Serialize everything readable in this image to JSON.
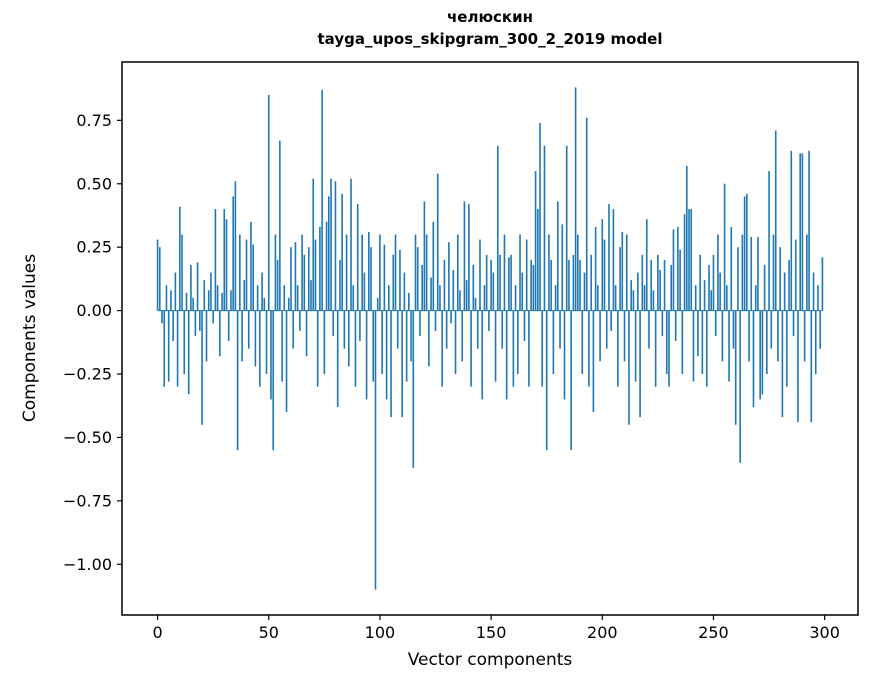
{
  "chart_data": {
    "type": "bar",
    "title": "челюскин",
    "subtitle": "tayga_upos_skipgram_300_2_2019 model",
    "xlabel": "Vector components",
    "ylabel": "Components values",
    "bar_color": "#1f77b4",
    "grid": false,
    "legend": "none",
    "xlim": [
      -16,
      315
    ],
    "ylim": [
      -1.2,
      0.98
    ],
    "x_ticks": {
      "values": [
        0,
        50,
        100,
        150,
        200,
        250,
        300
      ],
      "labels": [
        "0",
        "50",
        "100",
        "150",
        "200",
        "250",
        "300"
      ]
    },
    "y_ticks": {
      "values": [
        -1.0,
        -0.75,
        -0.5,
        -0.25,
        0.0,
        0.25,
        0.5,
        0.75
      ],
      "labels": [
        "−1.00",
        "−0.75",
        "−0.50",
        "−0.25",
        "0.00",
        "0.25",
        "0.50",
        "0.75"
      ]
    },
    "values": [
      0.28,
      0.25,
      -0.05,
      -0.3,
      0.1,
      -0.28,
      0.08,
      -0.12,
      0.15,
      -0.3,
      0.41,
      0.3,
      -0.25,
      0.07,
      -0.33,
      0.18,
      0.05,
      -0.1,
      0.19,
      -0.08,
      -0.45,
      0.12,
      -0.2,
      0.08,
      0.15,
      -0.05,
      0.4,
      0.1,
      -0.18,
      0.07,
      0.4,
      0.36,
      -0.12,
      0.08,
      0.45,
      0.51,
      -0.55,
      0.3,
      -0.2,
      0.12,
      0.28,
      -0.15,
      0.35,
      0.26,
      -0.22,
      0.1,
      -0.3,
      0.15,
      0.05,
      -0.25,
      0.85,
      -0.35,
      -0.55,
      0.3,
      0.2,
      0.67,
      -0.28,
      0.1,
      -0.4,
      0.05,
      0.25,
      -0.15,
      0.27,
      0.1,
      -0.08,
      0.3,
      0.22,
      -0.18,
      0.25,
      0.12,
      0.52,
      0.28,
      -0.3,
      0.33,
      0.87,
      -0.25,
      0.35,
      0.45,
      0.52,
      -0.1,
      0.51,
      -0.38,
      0.2,
      0.46,
      -0.15,
      0.3,
      -0.22,
      0.52,
      0.1,
      -0.3,
      0.42,
      -0.12,
      0.3,
      0.15,
      -0.35,
      0.31,
      0.25,
      -0.28,
      -1.1,
      0.05,
      0.3,
      -0.25,
      0.26,
      -0.35,
      0.1,
      -0.42,
      0.22,
      0.3,
      -0.15,
      0.24,
      -0.42,
      0.15,
      -0.28,
      0.07,
      -0.2,
      -0.62,
      0.3,
      0.25,
      -0.1,
      0.18,
      0.43,
      0.3,
      -0.22,
      0.13,
      0.35,
      -0.08,
      0.54,
      0.1,
      -0.3,
      0.2,
      -0.15,
      0.27,
      -0.05,
      0.16,
      -0.25,
      0.3,
      0.08,
      -0.2,
      0.43,
      0.12,
      0.42,
      -0.3,
      0.18,
      0.05,
      -0.15,
      0.28,
      -0.35,
      0.1,
      0.22,
      -0.08,
      0.2,
      0.15,
      -0.28,
      0.65,
      0.22,
      -0.15,
      0.3,
      -0.35,
      0.21,
      0.22,
      -0.3,
      0.1,
      -0.25,
      0.3,
      0.15,
      -0.12,
      0.28,
      -0.3,
      0.2,
      0.18,
      0.55,
      0.4,
      0.74,
      -0.3,
      0.65,
      -0.55,
      0.3,
      0.2,
      -0.25,
      0.1,
      0.43,
      -0.15,
      0.34,
      -0.35,
      0.65,
      0.2,
      -0.55,
      0.22,
      0.88,
      0.3,
      0.2,
      -0.25,
      0.15,
      0.76,
      -0.3,
      0.22,
      -0.4,
      0.33,
      0.1,
      -0.2,
      0.36,
      0.28,
      -0.15,
      0.42,
      -0.08,
      0.4,
      0.1,
      -0.3,
      0.25,
      0.31,
      -0.2,
      0.3,
      -0.45,
      0.12,
      0.08,
      -0.28,
      0.15,
      -0.42,
      0.22,
      0.1,
      0.36,
      -0.15,
      0.2,
      0.08,
      -0.3,
      0.22,
      0.16,
      -0.1,
      0.2,
      -0.25,
      -0.3,
      0.18,
      0.32,
      -0.12,
      0.33,
      0.24,
      -0.25,
      0.38,
      0.57,
      0.4,
      0.4,
      -0.28,
      0.1,
      -0.18,
      0.22,
      -0.25,
      0.12,
      -0.3,
      0.18,
      0.08,
      0.22,
      -0.1,
      0.3,
      0.15,
      -0.2,
      0.5,
      0.1,
      -0.28,
      0.33,
      -0.15,
      -0.45,
      0.25,
      -0.6,
      0.3,
      0.45,
      0.46,
      -0.2,
      0.29,
      -0.38,
      0.1,
      0.29,
      -0.35,
      -0.33,
      0.18,
      -0.25,
      0.55,
      -0.15,
      0.3,
      0.71,
      -0.2,
      0.25,
      -0.42,
      0.15,
      -0.3,
      0.2,
      0.63,
      -0.1,
      0.28,
      -0.44,
      0.62,
      0.62,
      -0.2,
      0.3,
      0.63,
      -0.44,
      0.15,
      -0.25,
      0.1,
      -0.15,
      0.21
    ]
  }
}
